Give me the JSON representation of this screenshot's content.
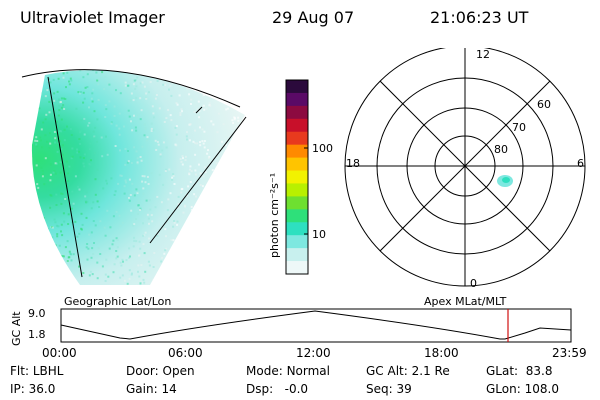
{
  "header": {
    "instrument": "Ultraviolet Imager",
    "date": "29 Aug 07",
    "time": "21:06:23 UT"
  },
  "colorbar": {
    "unit_label": "photon cm⁻²s⁻¹",
    "ticks": [
      "100",
      "10"
    ],
    "colors": [
      "#2b0a3c",
      "#5a0a66",
      "#8c0a40",
      "#c8102a",
      "#e83a1e",
      "#ff8a00",
      "#ffc400",
      "#f2f200",
      "#b8f000",
      "#6ee030",
      "#2ee07a",
      "#2ee0c0",
      "#7ee8e0",
      "#c8f0ee",
      "#eef8f8"
    ]
  },
  "polar_plot": {
    "mlt_labels": {
      "top": "12",
      "left": "18",
      "right": "6",
      "bottom": "0"
    },
    "lat_labels": [
      "60",
      "70",
      "80"
    ]
  },
  "timeline": {
    "axis_label": "GC Alt",
    "y_ticks": [
      "9.0",
      "1.8"
    ],
    "left_title": "Geographic Lat/Lon",
    "right_title": "Apex  MLat/MLT",
    "x_ticks": [
      "00:00",
      "06:00",
      "12:00",
      "18:00",
      "23:59"
    ],
    "marker_color": "#d01010"
  },
  "status": {
    "row1": [
      {
        "label": "Flt:",
        "value": "LBHL"
      },
      {
        "label": "Door:",
        "value": "Open"
      },
      {
        "label": "Mode:",
        "value": "Normal"
      },
      {
        "label": "GC Alt:",
        "value": "2.1 Re"
      },
      {
        "label": "GLat:",
        "value": "83.8"
      }
    ],
    "row2": [
      {
        "label": "IP:",
        "value": "36.0"
      },
      {
        "label": "Gain:",
        "value": "14"
      },
      {
        "label": "Dsp:",
        "value": "-0.0"
      },
      {
        "label": "Seq:",
        "value": "39"
      },
      {
        "label": "GLon:",
        "value": "108.0"
      }
    ]
  }
}
